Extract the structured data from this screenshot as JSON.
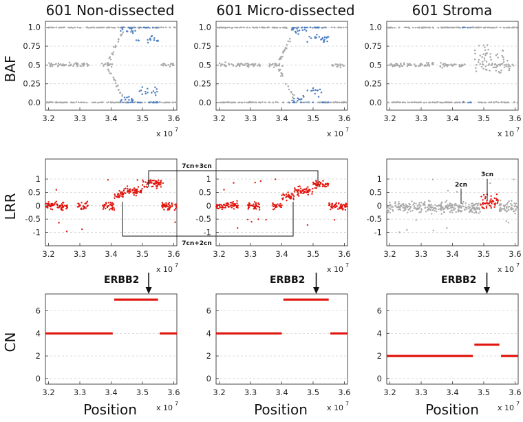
{
  "figure": {
    "columns": [
      "601 Non-dissected",
      "601 Micro-dissected",
      "601 Stroma"
    ],
    "row_labels": [
      "BAF",
      "LRR",
      "CN"
    ],
    "xlabel": "Position",
    "x_exponent_base": "x 10",
    "x_exponent_power": "7",
    "erbb2_label": "ERBB2",
    "annotations": {
      "upper": "7cn+3cn",
      "lower": "7cn+2cn",
      "stroma_2cn": "2cn",
      "stroma_3cn": "3cn"
    },
    "colors": {
      "gray": "#a9a9a9",
      "blue": "#4f7fc0",
      "red": "#e0150d",
      "grid": "#c8c8c8"
    }
  },
  "chart_data": [
    {
      "panel": "BAF-0",
      "type": "scatter",
      "title": "601 Non-dissected",
      "ylabel": "BAF",
      "xlim": [
        3.19,
        3.61
      ],
      "ylim": [
        -0.1,
        1.08
      ],
      "xticks": [
        3.2,
        3.3,
        3.4,
        3.5,
        3.6
      ],
      "yticks": [
        0.0,
        0.25,
        0.5,
        0.75,
        1.0
      ],
      "ytick_labels": [
        "0.0",
        "0.25",
        "0.5",
        "0.75",
        "1.0"
      ],
      "x_unit": "x 10^7",
      "blue_region": [
        3.43,
        3.55
      ],
      "het_region": [
        3.19,
        3.41
      ]
    },
    {
      "panel": "BAF-1",
      "type": "scatter",
      "title": "601 Micro-dissected",
      "ylabel": "BAF",
      "xlim": [
        3.19,
        3.61
      ],
      "ylim": [
        -0.1,
        1.08
      ],
      "xticks": [
        3.2,
        3.3,
        3.4,
        3.5,
        3.6
      ],
      "yticks": [
        0.0,
        0.25,
        0.5,
        0.75,
        1.0
      ],
      "ytick_labels": [
        "0.0",
        "0.25",
        "0.5",
        "0.75",
        "1.0"
      ],
      "x_unit": "x 10^7",
      "blue_region": [
        3.42,
        3.55
      ],
      "het_region": [
        3.19,
        3.41
      ]
    },
    {
      "panel": "BAF-2",
      "type": "scatter",
      "title": "601 Stroma",
      "ylabel": "BAF",
      "xlim": [
        3.19,
        3.61
      ],
      "ylim": [
        -0.1,
        1.08
      ],
      "xticks": [
        3.2,
        3.3,
        3.4,
        3.5,
        3.6
      ],
      "yticks": [
        0.0,
        0.25,
        0.5,
        0.75,
        1.0
      ],
      "ytick_labels": [
        "0.0",
        "0.25",
        "0.5",
        "0.75",
        "1.0"
      ],
      "x_unit": "x 10^7",
      "blue_region": [
        3.43,
        3.46
      ],
      "het_region": [
        3.19,
        3.6
      ]
    },
    {
      "panel": "LRR-0",
      "type": "scatter",
      "ylabel": "LRR",
      "xlim": [
        3.19,
        3.61
      ],
      "ylim": [
        -1.5,
        1.75
      ],
      "xticks": [
        3.2,
        3.3,
        3.4,
        3.5,
        3.6
      ],
      "yticks": [
        -1,
        -0.5,
        0,
        0.5,
        1
      ],
      "ytick_labels": [
        "-1",
        "-0.5",
        "0",
        "0.5",
        "1"
      ],
      "x_unit": "x 10^7",
      "color": "red",
      "segments": [
        {
          "x0": 3.19,
          "x1": 3.41,
          "mean": 0.0
        },
        {
          "x0": 3.41,
          "x1": 3.44,
          "mean": 0.4
        },
        {
          "x0": 3.44,
          "x1": 3.5,
          "mean": 0.55
        },
        {
          "x0": 3.5,
          "x1": 3.56,
          "mean": 0.85
        },
        {
          "x0": 3.56,
          "x1": 3.61,
          "mean": 0.0
        }
      ]
    },
    {
      "panel": "LRR-1",
      "type": "scatter",
      "ylabel": "LRR",
      "xlim": [
        3.19,
        3.61
      ],
      "ylim": [
        -1.5,
        1.75
      ],
      "xticks": [
        3.2,
        3.3,
        3.4,
        3.5,
        3.6
      ],
      "yticks": [
        -1,
        -0.5,
        0,
        0.5,
        1
      ],
      "ytick_labels": [
        "-1",
        "-0.5",
        "0",
        "0.5",
        "1"
      ],
      "x_unit": "x 10^7",
      "color": "red",
      "segments": [
        {
          "x0": 3.19,
          "x1": 3.4,
          "mean": 0.0
        },
        {
          "x0": 3.4,
          "x1": 3.44,
          "mean": 0.35
        },
        {
          "x0": 3.44,
          "x1": 3.5,
          "mean": 0.55
        },
        {
          "x0": 3.5,
          "x1": 3.55,
          "mean": 0.8
        },
        {
          "x0": 3.55,
          "x1": 3.61,
          "mean": 0.0
        }
      ]
    },
    {
      "panel": "LRR-2",
      "type": "scatter",
      "ylabel": "LRR",
      "xlim": [
        3.19,
        3.61
      ],
      "ylim": [
        -1.5,
        1.75
      ],
      "xticks": [
        3.2,
        3.3,
        3.4,
        3.5,
        3.6
      ],
      "yticks": [
        -1,
        -0.5,
        0,
        0.5,
        1
      ],
      "ytick_labels": [
        "-1",
        "-0.5",
        "0",
        "0.5",
        "1"
      ],
      "x_unit": "x 10^7",
      "color": "gray+red",
      "red_region": [
        3.49,
        3.55
      ],
      "segments": [
        {
          "x0": 3.19,
          "x1": 3.49,
          "mean": -0.05
        },
        {
          "x0": 3.49,
          "x1": 3.55,
          "mean": 0.15
        },
        {
          "x0": 3.55,
          "x1": 3.61,
          "mean": -0.05
        }
      ]
    },
    {
      "panel": "CN-0",
      "type": "line",
      "ylabel": "CN",
      "xlabel": "Position",
      "xlim": [
        3.19,
        3.61
      ],
      "ylim": [
        -0.5,
        7.5
      ],
      "xticks": [
        3.2,
        3.3,
        3.4,
        3.5,
        3.6
      ],
      "yticks": [
        0,
        2,
        4,
        6
      ],
      "ytick_labels": [
        "0",
        "2",
        "4",
        "6"
      ],
      "x_unit": "x 10^7",
      "segments": [
        {
          "x0": 3.19,
          "x1": 3.405,
          "cn": 4
        },
        {
          "x0": 3.41,
          "x1": 3.55,
          "cn": 7
        },
        {
          "x0": 3.555,
          "x1": 3.61,
          "cn": 4
        }
      ],
      "erbb2_position": 3.52
    },
    {
      "panel": "CN-1",
      "type": "line",
      "ylabel": "CN",
      "xlabel": "Position",
      "xlim": [
        3.19,
        3.61
      ],
      "ylim": [
        -0.5,
        7.5
      ],
      "xticks": [
        3.2,
        3.3,
        3.4,
        3.5,
        3.6
      ],
      "yticks": [
        0,
        2,
        4,
        6
      ],
      "ytick_labels": [
        "0",
        "2",
        "4",
        "6"
      ],
      "x_unit": "x 10^7",
      "segments": [
        {
          "x0": 3.19,
          "x1": 3.4,
          "cn": 4
        },
        {
          "x0": 3.405,
          "x1": 3.55,
          "cn": 7
        },
        {
          "x0": 3.555,
          "x1": 3.61,
          "cn": 4
        }
      ],
      "erbb2_position": 3.51
    },
    {
      "panel": "CN-2",
      "type": "line",
      "ylabel": "CN",
      "xlabel": "Position",
      "xlim": [
        3.19,
        3.61
      ],
      "ylim": [
        -0.5,
        7.5
      ],
      "xticks": [
        3.2,
        3.3,
        3.4,
        3.5,
        3.6
      ],
      "yticks": [
        0,
        2,
        4,
        6
      ],
      "ytick_labels": [
        "0",
        "2",
        "4",
        "6"
      ],
      "x_unit": "x 10^7",
      "segments": [
        {
          "x0": 3.19,
          "x1": 3.465,
          "cn": 2
        },
        {
          "x0": 3.47,
          "x1": 3.55,
          "cn": 3
        },
        {
          "x0": 3.555,
          "x1": 3.61,
          "cn": 2
        }
      ],
      "erbb2_position": 3.51
    }
  ]
}
